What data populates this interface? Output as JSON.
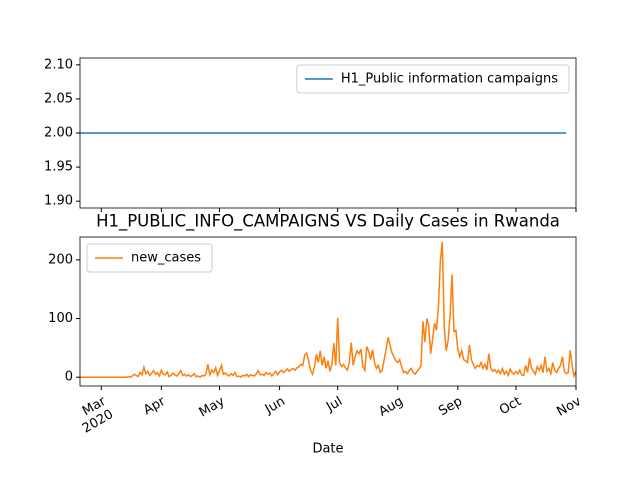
{
  "chart_data": [
    {
      "type": "line",
      "legend": "upper right",
      "series": [
        {
          "name": "H1_Public information campaigns",
          "color": "#1f77b4",
          "x": [
            0,
            251
          ],
          "values": [
            2,
            2
          ]
        }
      ],
      "xlim": [
        0,
        256
      ],
      "ylim": [
        1.89,
        2.11
      ],
      "yticks": [
        {
          "value": 1.9,
          "label": "1.90"
        },
        {
          "value": 1.95,
          "label": "1.95"
        },
        {
          "value": 2.0,
          "label": "2.00"
        },
        {
          "value": 2.05,
          "label": "2.05"
        },
        {
          "value": 2.1,
          "label": "2.10"
        }
      ]
    },
    {
      "type": "line",
      "title": "H1_PUBLIC_INFO_CAMPAIGNS VS Daily Cases in Rwanda",
      "xlabel": "Date",
      "legend": "upper left",
      "series": [
        {
          "name": "new_cases",
          "color": "#ff7f0e",
          "values": [
            0,
            0,
            0,
            0,
            0,
            0,
            0,
            0,
            0,
            0,
            0,
            0,
            0,
            0,
            0,
            0,
            0,
            0,
            0,
            0,
            0,
            0,
            0,
            0,
            0,
            1,
            0,
            2,
            5,
            3,
            1,
            8,
            4,
            17,
            6,
            10,
            3,
            7,
            11,
            5,
            8,
            2,
            12,
            5,
            4,
            9,
            1,
            3,
            7,
            4,
            2,
            6,
            11,
            3,
            5,
            2,
            4,
            1,
            3,
            6,
            1,
            2,
            0,
            3,
            2,
            5,
            22,
            4,
            12,
            8,
            16,
            3,
            11,
            20,
            5,
            7,
            4,
            2,
            6,
            3,
            8,
            1,
            2,
            0,
            3,
            2,
            5,
            1,
            4,
            3,
            2,
            6,
            11,
            4,
            5,
            3,
            8,
            5,
            7,
            2,
            6,
            10,
            4,
            9,
            12,
            8,
            11,
            14,
            10,
            13,
            15,
            12,
            16,
            18,
            22,
            20,
            38,
            41,
            28,
            12,
            5,
            18,
            39,
            25,
            45,
            20,
            35,
            15,
            28,
            10,
            22,
            58,
            20,
            101,
            25,
            18,
            22,
            16,
            12,
            25,
            59,
            20,
            35,
            45,
            40,
            48,
            18,
            12,
            52,
            44,
            30,
            47,
            25,
            15,
            20,
            8,
            12,
            30,
            48,
            68,
            55,
            42,
            35,
            28,
            25,
            30,
            18,
            8,
            10,
            6,
            12,
            15,
            8,
            5,
            10,
            14,
            20,
            95,
            60,
            100,
            88,
            40,
            65,
            92,
            80,
            120,
            200,
            231,
            85,
            45,
            62,
            105,
            175,
            78,
            80,
            48,
            35,
            45,
            30,
            28,
            25,
            55,
            30,
            22,
            15,
            20,
            18,
            25,
            15,
            22,
            12,
            40,
            16,
            10,
            13,
            8,
            12,
            6,
            15,
            5,
            10,
            3,
            14,
            8,
            5,
            10,
            6,
            12,
            4,
            3,
            20,
            8,
            33,
            15,
            10,
            5,
            18,
            12,
            20,
            8,
            35,
            10,
            15,
            6,
            25,
            12,
            8,
            15,
            20,
            35,
            10,
            6,
            8,
            46,
            20,
            2,
            10
          ]
        }
      ],
      "xlim": [
        0,
        256
      ],
      "ylim": [
        -15,
        239
      ],
      "yticks": [
        0,
        100,
        200
      ],
      "xticks": [
        {
          "value": 11,
          "label": "Mar\n2020"
        },
        {
          "value": 42,
          "label": "Apr"
        },
        {
          "value": 72,
          "label": "May"
        },
        {
          "value": 103,
          "label": "Jun"
        },
        {
          "value": 133,
          "label": "Jul"
        },
        {
          "value": 164,
          "label": "Aug"
        },
        {
          "value": 195,
          "label": "Sep"
        },
        {
          "value": 225,
          "label": "Oct"
        },
        {
          "value": 256,
          "label": "Nov"
        }
      ]
    }
  ]
}
